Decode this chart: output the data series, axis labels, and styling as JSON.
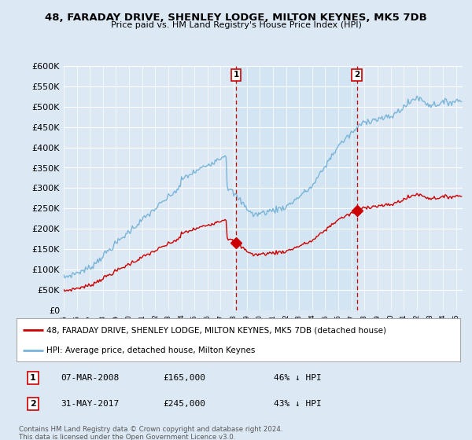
{
  "title": "48, FARADAY DRIVE, SHENLEY LODGE, MILTON KEYNES, MK5 7DB",
  "subtitle": "Price paid vs. HM Land Registry's House Price Index (HPI)",
  "background_color": "#dce9f5",
  "plot_bg_color": "#dce9f5",
  "hpi_color": "#7ab4d8",
  "hpi_fill_color": "#c5dff0",
  "price_color": "#cc0000",
  "marker_color": "#cc0000",
  "vline_color": "#cc0000",
  "ylim": [
    0,
    600000
  ],
  "yticks": [
    0,
    50000,
    100000,
    150000,
    200000,
    250000,
    300000,
    350000,
    400000,
    450000,
    500000,
    550000,
    600000
  ],
  "ytick_labels": [
    "£0",
    "£50K",
    "£100K",
    "£150K",
    "£200K",
    "£250K",
    "£300K",
    "£350K",
    "£400K",
    "£450K",
    "£500K",
    "£550K",
    "£600K"
  ],
  "sale1_year": 2008.18,
  "sale1_price": 165000,
  "sale2_year": 2017.41,
  "sale2_price": 245000,
  "legend_line1": "48, FARADAY DRIVE, SHENLEY LODGE, MILTON KEYNES, MK5 7DB (detached house)",
  "legend_line2": "HPI: Average price, detached house, Milton Keynes",
  "table_row1": [
    "1",
    "07-MAR-2008",
    "£165,000",
    "46% ↓ HPI"
  ],
  "table_row2": [
    "2",
    "31-MAY-2017",
    "£245,000",
    "43% ↓ HPI"
  ],
  "footnote": "Contains HM Land Registry data © Crown copyright and database right 2024.\nThis data is licensed under the Open Government Licence v3.0.",
  "xmin": 1995,
  "xmax": 2025.5
}
